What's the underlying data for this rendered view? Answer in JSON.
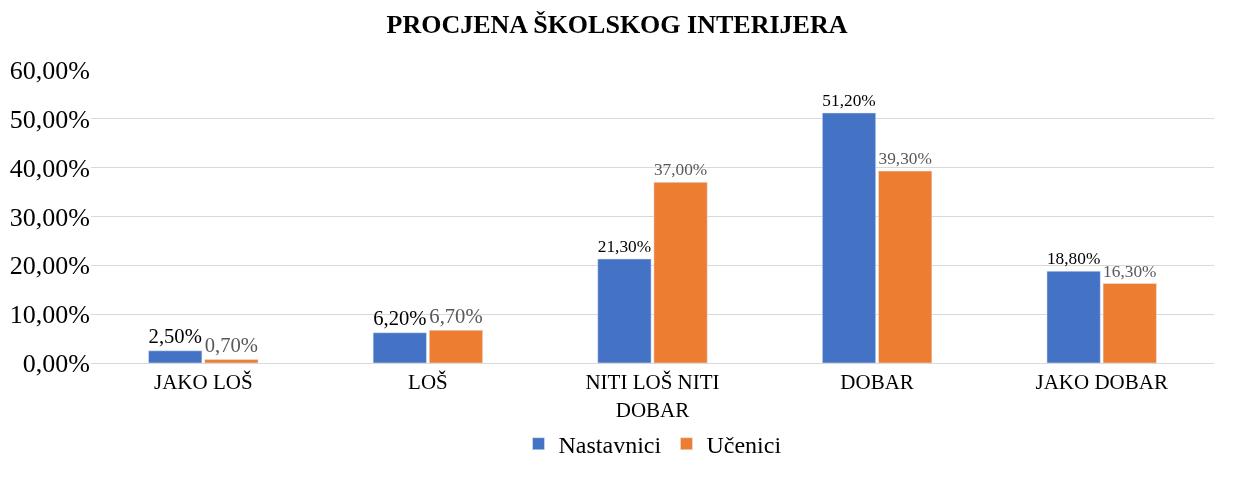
{
  "chart_data": {
    "type": "bar",
    "title": "PROCJENA ŠKOLSKOG INTERIJERA",
    "categories": [
      "JAKO LOŠ",
      "LOŠ",
      "NITI LOŠ NITI DOBAR",
      "DOBAR",
      "JAKO DOBAR"
    ],
    "series": [
      {
        "name": "Nastavnici",
        "color": "#4472c4",
        "values": [
          2.5,
          6.2,
          21.3,
          51.2,
          18.8
        ],
        "value_labels": [
          "2,50%",
          "6,20%",
          "21,30%",
          "51,20%",
          "18,80%"
        ]
      },
      {
        "name": "Učenici",
        "color": "#ed7d31",
        "values": [
          0.7,
          6.7,
          37.0,
          39.3,
          16.3
        ],
        "value_labels": [
          "0,70%",
          "6,70%",
          "37,00%",
          "39,30%",
          "16,30%"
        ]
      }
    ],
    "ylim": [
      0,
      60
    ],
    "yticks": [
      {
        "value": 0,
        "label": "0,00%"
      },
      {
        "value": 10,
        "label": "10,00%"
      },
      {
        "value": 20,
        "label": "20,00%"
      },
      {
        "value": 30,
        "label": "30,00%"
      },
      {
        "value": 40,
        "label": "40,00%"
      },
      {
        "value": 50,
        "label": "50,00%"
      },
      {
        "value": 60,
        "label": "60,00%"
      }
    ],
    "grid": "y",
    "legend": "bottom"
  }
}
